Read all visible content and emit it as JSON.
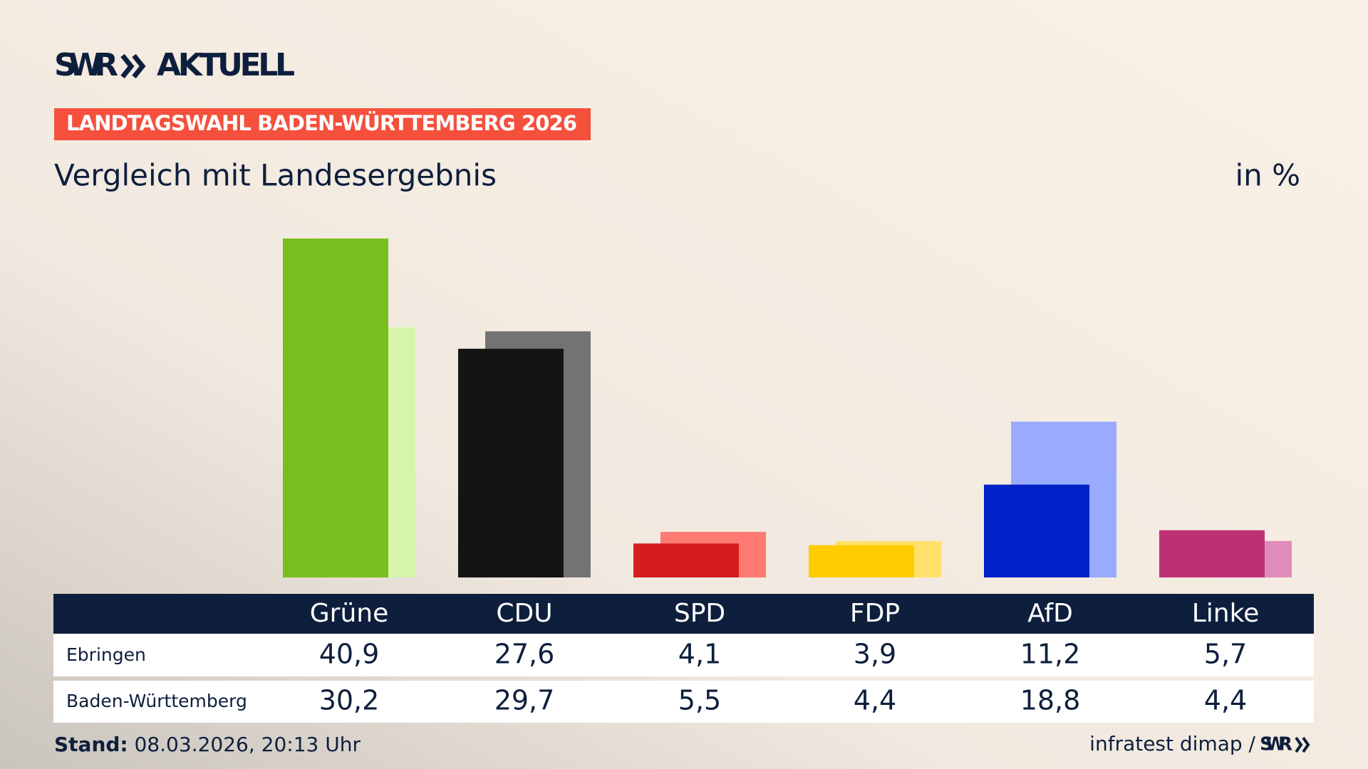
{
  "header": {
    "logo": "SWR",
    "logo_suffix": "AKTUELL",
    "badge": "LANDTAGSWAHL BADEN-WÜRTTEMBERG 2026"
  },
  "chart_data": {
    "type": "bar",
    "title": "Vergleich mit Landesergebnis",
    "unit": "in %",
    "categories": [
      "Grüne",
      "CDU",
      "SPD",
      "FDP",
      "AfD",
      "Linke"
    ],
    "series": [
      {
        "name": "Ebringen",
        "colors": [
          "#78be1e",
          "#141414",
          "#d61d1d",
          "#ffcc00",
          "#0021c8",
          "#be3075"
        ],
        "values": [
          40.9,
          27.6,
          4.1,
          3.9,
          11.2,
          5.7
        ],
        "value_labels": [
          "40,9",
          "27,6",
          "4,1",
          "3,9",
          "11,2",
          "5,7"
        ]
      },
      {
        "name": "Baden-Württemberg",
        "colors": [
          "#d7f5aa",
          "#737373",
          "#ff7a72",
          "#ffe16b",
          "#9aabff",
          "#de8cbc"
        ],
        "values": [
          30.2,
          29.7,
          5.5,
          4.4,
          18.8,
          4.4
        ],
        "value_labels": [
          "30,2",
          "29,7",
          "5,5",
          "4,4",
          "18,8",
          "4,4"
        ]
      }
    ]
  },
  "footer": {
    "stand_label": "Stand:",
    "stand": "08.03.2026, 20:13 Uhr",
    "source": "infratest dimap /",
    "source_logo": "SWR"
  }
}
